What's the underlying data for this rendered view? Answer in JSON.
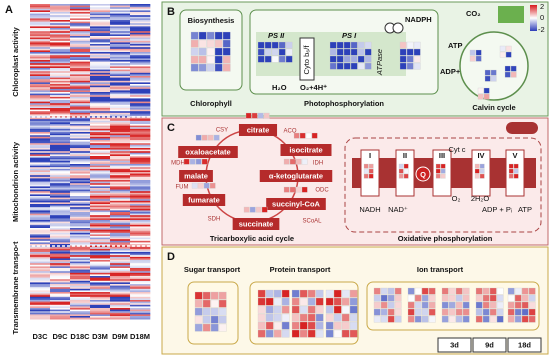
{
  "panel_a": {
    "label": "A",
    "sections": [
      "Chloroplast activity",
      "Mitochondrion activity",
      "Transmembrane transport"
    ],
    "columns": [
      "D3C",
      "D9C",
      "D18C",
      "D3M",
      "D9M",
      "D18M"
    ]
  },
  "panel_b": {
    "label": "B",
    "biosynthesis": "Biosynthesis",
    "chlorophyll": "Chlorophyll",
    "ps2": "PS II",
    "cyto": "Cyto b₆/f",
    "ps1": "PS I",
    "atpase": "ATPase",
    "nadph": "NADPH",
    "atp": "ATP",
    "adp": "ADP+Pi",
    "h2o": "H₂O",
    "o2": "O₂+4H⁺",
    "photo": "Photophosphorylation",
    "co2": "CO₂",
    "calvin": "Calvin cycle",
    "scale": [
      2,
      0,
      -2
    ]
  },
  "panel_c": {
    "label": "C",
    "metabolites": [
      "citrate",
      "isocitrate",
      "α-ketoglutarate",
      "succinyl-CoA",
      "succinate",
      "fumarate",
      "malate",
      "oxaloacetate"
    ],
    "enzymes": [
      "CSY",
      "ACO",
      "IDH",
      "ODC",
      "SCoAL",
      "SDH",
      "FUM",
      "MDH"
    ],
    "tca": "Tricarboxylic acid cycle",
    "complexes": [
      "I",
      "II",
      "III",
      "IV",
      "V"
    ],
    "q": "Q",
    "cytc": "Cyt c",
    "nadh": "NADH",
    "nad": "NAD⁺",
    "o2": "O₂",
    "h2o": "2H₂O",
    "adp": "ADP + Pᵢ",
    "atp": "ATP",
    "oxphos": "Oxidative phosphorylation"
  },
  "panel_d": {
    "label": "D",
    "sugar": "Sugar transport",
    "protein": "Protein transport",
    "ion": "Ion transport",
    "legend": [
      "3d",
      "9d",
      "18d"
    ]
  }
}
